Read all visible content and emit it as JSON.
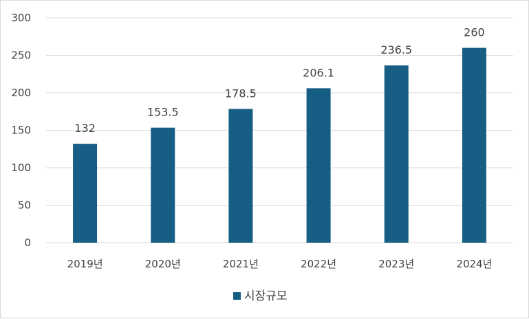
{
  "chart_data": {
    "type": "bar",
    "categories": [
      "2019년",
      "2020년",
      "2021년",
      "2022년",
      "2023년",
      "2024년"
    ],
    "series": [
      {
        "name": "시장규모",
        "values": [
          132,
          153.5,
          178.5,
          206.1,
          236.5,
          260
        ],
        "color": "#165e83"
      }
    ],
    "data_labels": [
      "132",
      "153.5",
      "178.5",
      "206.1",
      "236.5",
      "260"
    ],
    "y_ticks": [
      "0",
      "50",
      "100",
      "150",
      "200",
      "250",
      "300"
    ],
    "ylim": [
      0,
      300
    ],
    "grid": true,
    "gridline_color": "#d9d9d9",
    "legend": {
      "position": "bottom",
      "entries": [
        "시장규모"
      ]
    }
  }
}
